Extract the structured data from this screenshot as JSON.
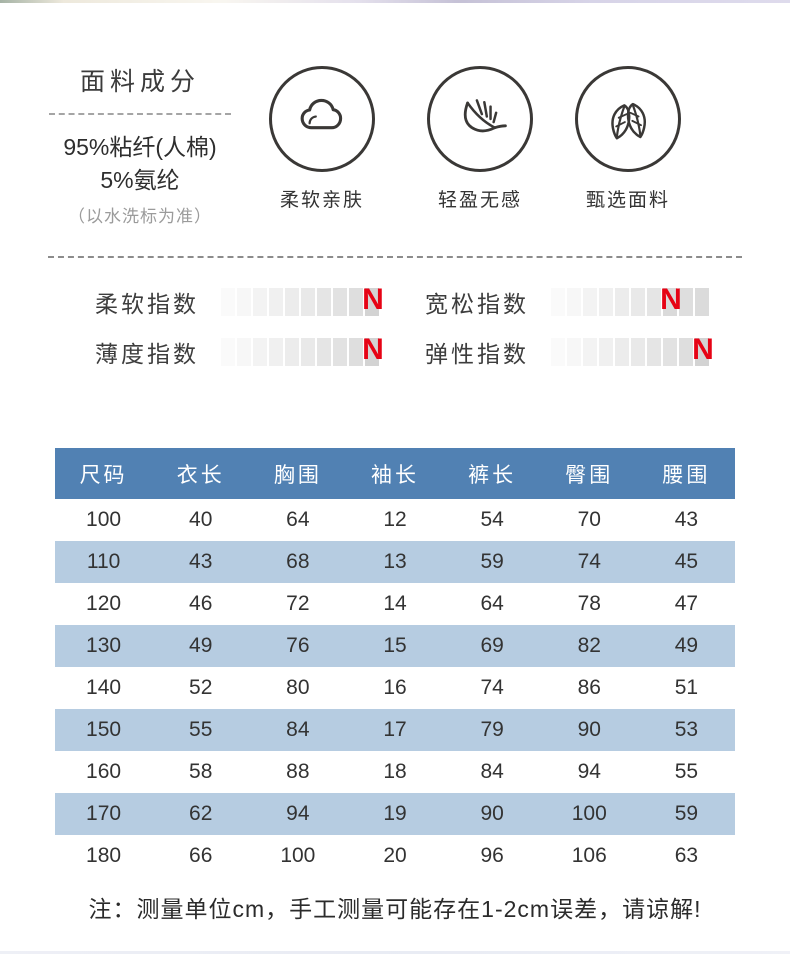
{
  "fabric": {
    "title": "面料成分",
    "line1": "95%粘纤(人棉)",
    "line2": "5%氨纶",
    "note": "（以水洗标为准）"
  },
  "features": [
    {
      "icon": "cloud-icon",
      "label": "柔软亲肤"
    },
    {
      "icon": "feather-icon",
      "label": "轻盈无感"
    },
    {
      "icon": "leaves-icon",
      "label": "甄选面料"
    }
  ],
  "marker": "N",
  "indices": [
    {
      "label": "柔软指数",
      "level": 10,
      "segments": 10
    },
    {
      "label": "宽松指数",
      "level": 8,
      "segments": 10
    },
    {
      "label": "薄度指数",
      "level": 10,
      "segments": 10
    },
    {
      "label": "弹性指数",
      "level": 10,
      "segments": 10
    }
  ],
  "size_table": {
    "headers": [
      "尺码",
      "衣长",
      "胸围",
      "袖长",
      "裤长",
      "臀围",
      "腰围"
    ],
    "rows": [
      [
        "100",
        "40",
        "64",
        "12",
        "54",
        "70",
        "43"
      ],
      [
        "110",
        "43",
        "68",
        "13",
        "59",
        "74",
        "45"
      ],
      [
        "120",
        "46",
        "72",
        "14",
        "64",
        "78",
        "47"
      ],
      [
        "130",
        "49",
        "76",
        "15",
        "69",
        "82",
        "49"
      ],
      [
        "140",
        "52",
        "80",
        "16",
        "74",
        "86",
        "51"
      ],
      [
        "150",
        "55",
        "84",
        "17",
        "79",
        "90",
        "53"
      ],
      [
        "160",
        "58",
        "88",
        "18",
        "84",
        "94",
        "55"
      ],
      [
        "170",
        "62",
        "94",
        "19",
        "90",
        "100",
        "59"
      ],
      [
        "180",
        "66",
        "100",
        "20",
        "96",
        "106",
        "63"
      ]
    ]
  },
  "footnote": "注：测量单位cm，手工测量可能存在1-2cm误差，请谅解!",
  "colors": {
    "header_blue": "#5181b3",
    "row_blue": "#b6cce1",
    "marker_red": "#e60315",
    "icon_stroke": "#3a3836",
    "bar_light": "#fafafa",
    "bar_dark": "#dbdbdb"
  }
}
